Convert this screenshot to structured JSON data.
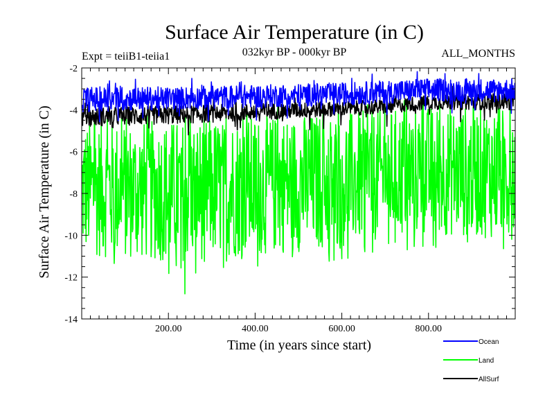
{
  "chart_data": {
    "type": "line",
    "title": "Surface Air Temperature (in C)",
    "subtitle_left": "Expt = teiiB1-teiia1",
    "subtitle_center": "032kyr BP - 000kyr BP",
    "subtitle_right": "ALL_MONTHS",
    "xlabel": "Time (in years since start)",
    "ylabel": "Surface Air Temperature (in C)",
    "xlim": [
      0,
      1000
    ],
    "ylim": [
      -14,
      -2
    ],
    "x_ticks": [
      {
        "value": 200,
        "label": "200.00"
      },
      {
        "value": 400,
        "label": "400.00"
      },
      {
        "value": 600,
        "label": "600.00"
      },
      {
        "value": 800,
        "label": "800.00"
      }
    ],
    "y_ticks": [
      {
        "value": -2,
        "label": "-2"
      },
      {
        "value": -4,
        "label": "-4"
      },
      {
        "value": -6,
        "label": "-6"
      },
      {
        "value": -8,
        "label": "-8"
      },
      {
        "value": -10,
        "label": "-10"
      },
      {
        "value": -12,
        "label": "-12"
      },
      {
        "value": -14,
        "label": "-14"
      }
    ],
    "grid": false,
    "legend_position": "bottom-right",
    "series": [
      {
        "name": "Land",
        "color": "#00ff00",
        "envelope": {
          "x": [
            0,
            200,
            400,
            600,
            700,
            800,
            1000
          ],
          "upper": [
            -4.6,
            -4.5,
            -4.3,
            -4.1,
            -4.0,
            -3.8,
            -3.8
          ],
          "lower": [
            -11.0,
            -11.3,
            -11.0,
            -10.6,
            -10.2,
            -10.0,
            -10.2
          ]
        },
        "min_point": {
          "x": 238,
          "y": -12.8
        }
      },
      {
        "name": "AllSurf",
        "color": "#000000",
        "envelope": {
          "x": [
            0,
            200,
            400,
            600,
            700,
            800,
            1000
          ],
          "upper": [
            -3.9,
            -3.8,
            -3.7,
            -3.6,
            -3.5,
            -3.3,
            -3.2
          ],
          "lower": [
            -4.8,
            -4.7,
            -4.5,
            -4.3,
            -4.2,
            -4.0,
            -4.0
          ]
        }
      },
      {
        "name": "Ocean",
        "color": "#0000ff",
        "envelope": {
          "x": [
            0,
            200,
            400,
            600,
            700,
            800,
            1000
          ],
          "upper": [
            -2.9,
            -2.9,
            -2.8,
            -2.7,
            -2.6,
            -2.5,
            -2.5
          ],
          "lower": [
            -4.1,
            -4.0,
            -3.9,
            -3.8,
            -3.7,
            -3.6,
            -3.6
          ]
        }
      }
    ],
    "legend": [
      {
        "name": "Ocean",
        "color": "#0000ff"
      },
      {
        "name": "Land",
        "color": "#00ff00"
      },
      {
        "name": "AllSurf",
        "color": "#000000"
      }
    ]
  }
}
